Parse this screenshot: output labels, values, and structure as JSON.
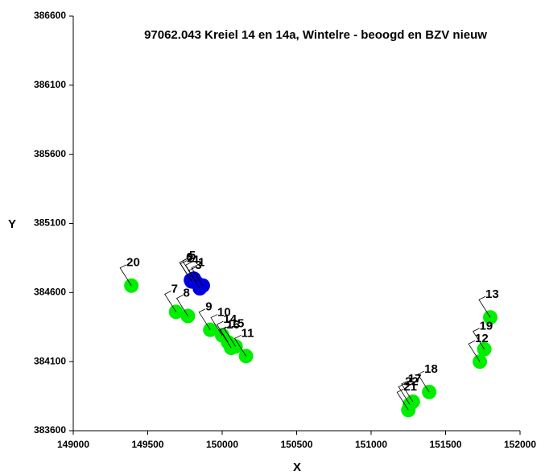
{
  "chart_data": {
    "type": "scatter",
    "title": "97062.043 Kreiel 14 en 14a, Wintelre - beoogd en BZV nieuw",
    "x_label": "X",
    "y_label": "Y",
    "xlim": [
      149000,
      152000
    ],
    "xticks": [
      149000,
      149500,
      150000,
      150500,
      151000,
      151500,
      152000
    ],
    "ylim": [
      383600,
      386600
    ],
    "yticks": [
      383600,
      384100,
      384600,
      385100,
      385600,
      386100,
      386600
    ],
    "series": [
      {
        "color": "#00ee00",
        "labels": [
          "7",
          "8",
          "9",
          "10",
          "14",
          "16",
          "15",
          "11",
          "12",
          "19",
          "13",
          "18",
          "17",
          "21",
          "22",
          "20"
        ],
        "x": [
          149690,
          149770,
          149920,
          150000,
          150040,
          150060,
          150090,
          150160,
          151730,
          151760,
          151800,
          151390,
          151280,
          151250,
          151260,
          149390
        ],
        "values": [
          384460,
          384430,
          384330,
          384290,
          384240,
          384200,
          384210,
          384140,
          384100,
          384190,
          384420,
          383880,
          383810,
          383750,
          383790,
          384650
        ]
      },
      {
        "color": "#0000dd",
        "labels": [
          "1",
          "2",
          "3",
          "4",
          "5",
          "6"
        ],
        "x": [
          149870,
          149795,
          149850,
          149830,
          149810,
          149790
        ],
        "values": [
          384650,
          384680,
          384630,
          384670,
          384700,
          384690
        ]
      }
    ]
  }
}
